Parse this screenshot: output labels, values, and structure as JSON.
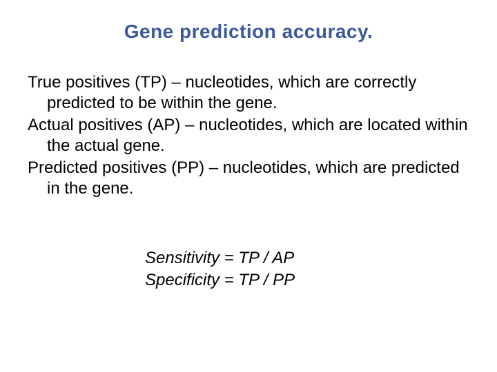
{
  "title": {
    "text": "Gene prediction accuracy.",
    "color": "#3c5a9a",
    "fontsize": 28
  },
  "body": {
    "color": "#000000",
    "fontsize": 24,
    "definitions": [
      "True positives (TP) – nucleotides, which are correctly predicted to be within the gene.",
      "Actual positives (AP) – nucleotides, which are located within the actual gene.",
      "Predicted positives (PP) – nucleotides, which are predicted in the gene."
    ]
  },
  "formulas": {
    "color": "#000000",
    "fontsize": 24,
    "lines": [
      "Sensitivity = TP / AP",
      "Specificity = TP / PP"
    ]
  }
}
